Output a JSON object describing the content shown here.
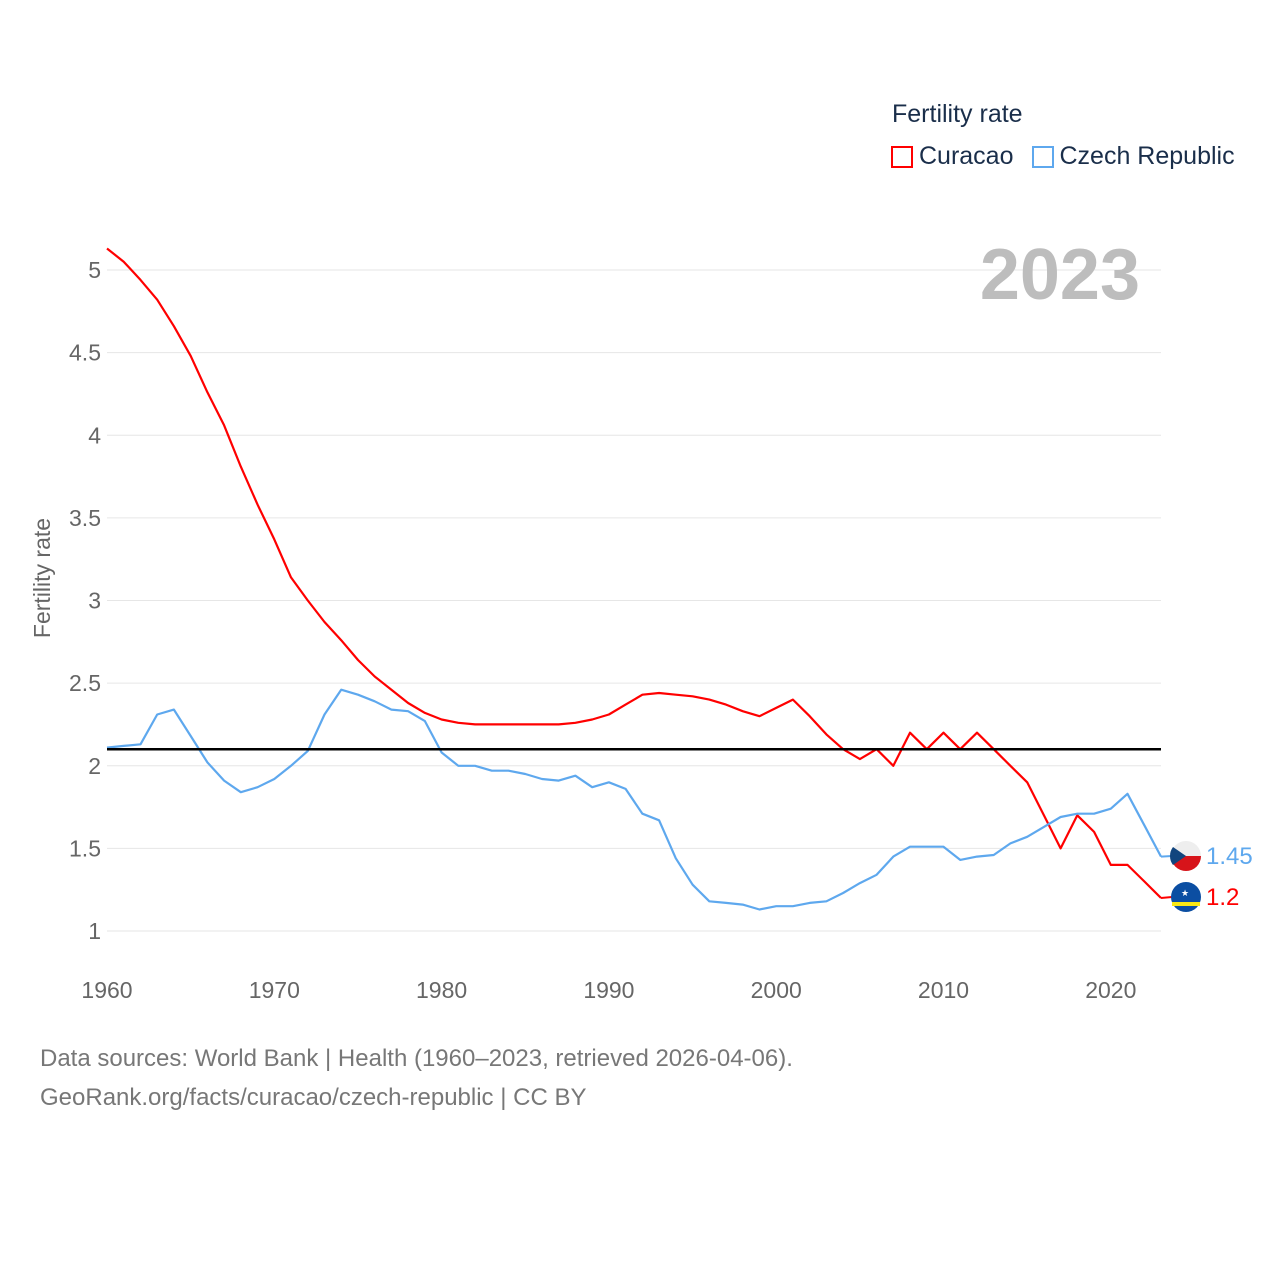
{
  "chart_data": {
    "type": "line",
    "title": "Fertility rate",
    "ylabel": "Fertility rate",
    "xlabel": "",
    "xlim": [
      1960,
      2023
    ],
    "ylim": [
      1,
      5
    ],
    "x_ticks": [
      1960,
      1970,
      1980,
      1990,
      2000,
      2010,
      2020
    ],
    "y_ticks": [
      1,
      1.5,
      2,
      2.5,
      3,
      3.5,
      4,
      4.5,
      5
    ],
    "y_tick_labels": [
      "1",
      "1.5",
      "2",
      "2.5",
      "3",
      "3.5",
      "4",
      "4.5",
      "5"
    ],
    "grid": true,
    "legend_position": "top-right",
    "reference_line": {
      "value": 2.1,
      "color": "#000000"
    },
    "year_label": "2023",
    "x": [
      1960,
      1961,
      1962,
      1963,
      1964,
      1965,
      1966,
      1967,
      1968,
      1969,
      1970,
      1971,
      1972,
      1973,
      1974,
      1975,
      1976,
      1977,
      1978,
      1979,
      1980,
      1981,
      1982,
      1983,
      1984,
      1985,
      1986,
      1987,
      1988,
      1989,
      1990,
      1991,
      1992,
      1993,
      1994,
      1995,
      1996,
      1997,
      1998,
      1999,
      2000,
      2001,
      2002,
      2003,
      2004,
      2005,
      2006,
      2007,
      2008,
      2009,
      2010,
      2011,
      2012,
      2013,
      2014,
      2015,
      2016,
      2017,
      2018,
      2019,
      2020,
      2021,
      2022,
      2023
    ],
    "series": [
      {
        "name": "Curacao",
        "color": "#ff0000",
        "end_label": "1.2",
        "flag": "curacao-flag",
        "values": [
          5.13,
          5.05,
          4.94,
          4.82,
          4.66,
          4.48,
          4.26,
          4.06,
          3.81,
          3.58,
          3.37,
          3.14,
          3.0,
          2.87,
          2.76,
          2.64,
          2.54,
          2.46,
          2.38,
          2.32,
          2.28,
          2.26,
          2.25,
          2.25,
          2.25,
          2.25,
          2.25,
          2.25,
          2.26,
          2.28,
          2.31,
          2.37,
          2.43,
          2.44,
          2.43,
          2.42,
          2.4,
          2.37,
          2.33,
          2.3,
          2.35,
          2.4,
          2.3,
          2.19,
          2.1,
          2.04,
          2.1,
          2.0,
          2.2,
          2.1,
          2.2,
          2.1,
          2.2,
          2.1,
          2.0,
          1.9,
          1.7,
          1.5,
          1.7,
          1.6,
          1.4,
          1.4,
          1.3,
          1.2
        ]
      },
      {
        "name": "Czech Republic",
        "color": "#5ea8ee",
        "end_label": "1.45",
        "flag": "czech-flag",
        "values": [
          2.11,
          2.12,
          2.13,
          2.31,
          2.34,
          2.18,
          2.02,
          1.91,
          1.84,
          1.87,
          1.92,
          2.0,
          2.09,
          2.31,
          2.46,
          2.43,
          2.39,
          2.34,
          2.33,
          2.27,
          2.08,
          2.0,
          2.0,
          1.97,
          1.97,
          1.95,
          1.92,
          1.91,
          1.94,
          1.87,
          1.9,
          1.86,
          1.71,
          1.67,
          1.44,
          1.28,
          1.18,
          1.17,
          1.16,
          1.13,
          1.15,
          1.15,
          1.17,
          1.18,
          1.23,
          1.29,
          1.34,
          1.45,
          1.51,
          1.51,
          1.51,
          1.43,
          1.45,
          1.46,
          1.53,
          1.57,
          1.63,
          1.69,
          1.71,
          1.71,
          1.74,
          1.83,
          1.64,
          1.45
        ]
      }
    ]
  },
  "footer": {
    "line1": "Data sources: World Bank | Health (1960–2023, retrieved 2026-04-06).",
    "line2": "GeoRank.org/facts/curacao/czech-republic | CC BY"
  }
}
